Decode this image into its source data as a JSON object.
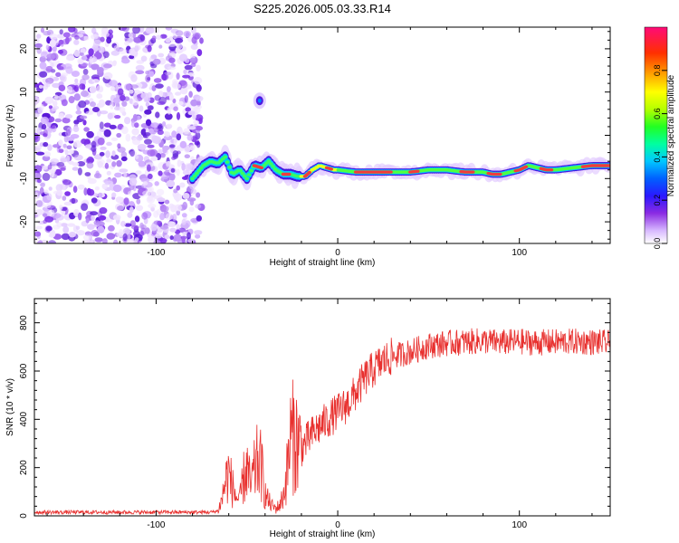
{
  "chart_data": [
    {
      "type": "heatmap",
      "title": "S225.2026.005.03.33.R14",
      "xlabel": "Height of straight line (km)",
      "ylabel": "Frequency (Hz)",
      "xlim": [
        -167,
        150
      ],
      "ylim": [
        -25,
        25
      ],
      "xticks": [
        -100,
        0,
        100
      ],
      "yticks": [
        -20,
        -10,
        0,
        10,
        20
      ],
      "colorbar": {
        "label": "Normalized spectral amplitude",
        "range": [
          0,
          1
        ],
        "ticks": [
          0.0,
          0.2,
          0.4,
          0.6,
          0.8
        ]
      },
      "noise_region_x": [
        -167,
        -75
      ],
      "isolated_blob": {
        "x": -43,
        "y": 8
      },
      "frequency_trace": {
        "x": [
          -80,
          -74,
          -70,
          -66,
          -62,
          -58,
          -54,
          -50,
          -46,
          -42,
          -38,
          -34,
          -30,
          -26,
          -22,
          -18,
          -14,
          -10,
          -6,
          -2,
          0,
          10,
          20,
          30,
          40,
          50,
          60,
          70,
          80,
          85,
          90,
          95,
          100,
          105,
          110,
          115,
          120,
          130,
          140,
          150
        ],
        "y": [
          -10,
          -7,
          -6,
          -6.5,
          -5,
          -9,
          -8,
          -10,
          -7,
          -7.5,
          -6,
          -8,
          -9,
          -9,
          -9.5,
          -9.5,
          -8,
          -7,
          -7.5,
          -8,
          -8,
          -8.5,
          -8.5,
          -8.5,
          -8.5,
          -8,
          -8,
          -8.5,
          -8.5,
          -9,
          -9,
          -8.5,
          -8,
          -7,
          -7.5,
          -8,
          -8,
          -7.5,
          -7,
          -7
        ]
      }
    },
    {
      "type": "line",
      "xlabel": "Height of straight line (km)",
      "ylabel": "SNR (10 * v/v)",
      "xlim": [
        -167,
        150
      ],
      "ylim": [
        0,
        900
      ],
      "xticks": [
        -100,
        0,
        100
      ],
      "yticks": [
        0,
        200,
        400,
        600,
        800
      ],
      "color": "#e8312f",
      "series": [
        {
          "name": "SNR",
          "x": [
            -167,
            -150,
            -120,
            -100,
            -80,
            -70,
            -66,
            -64,
            -62,
            -60,
            -58,
            -56,
            -54,
            -52,
            -50,
            -48,
            -46,
            -44,
            -42,
            -40,
            -38,
            -36,
            -34,
            -32,
            -30,
            -28,
            -26,
            -24,
            -22,
            -20,
            -15,
            -10,
            -5,
            0,
            5,
            10,
            15,
            20,
            25,
            30,
            40,
            50,
            60,
            70,
            80,
            90,
            100,
            110,
            120,
            130,
            140,
            150
          ],
          "values": [
            15,
            15,
            15,
            15,
            15,
            15,
            20,
            60,
            140,
            180,
            120,
            80,
            60,
            150,
            200,
            120,
            180,
            230,
            200,
            90,
            60,
            40,
            30,
            45,
            80,
            180,
            320,
            330,
            300,
            280,
            330,
            370,
            400,
            430,
            460,
            510,
            570,
            610,
            640,
            660,
            680,
            705,
            715,
            720,
            725,
            718,
            722,
            718,
            720,
            722,
            720,
            715
          ]
        }
      ]
    }
  ]
}
